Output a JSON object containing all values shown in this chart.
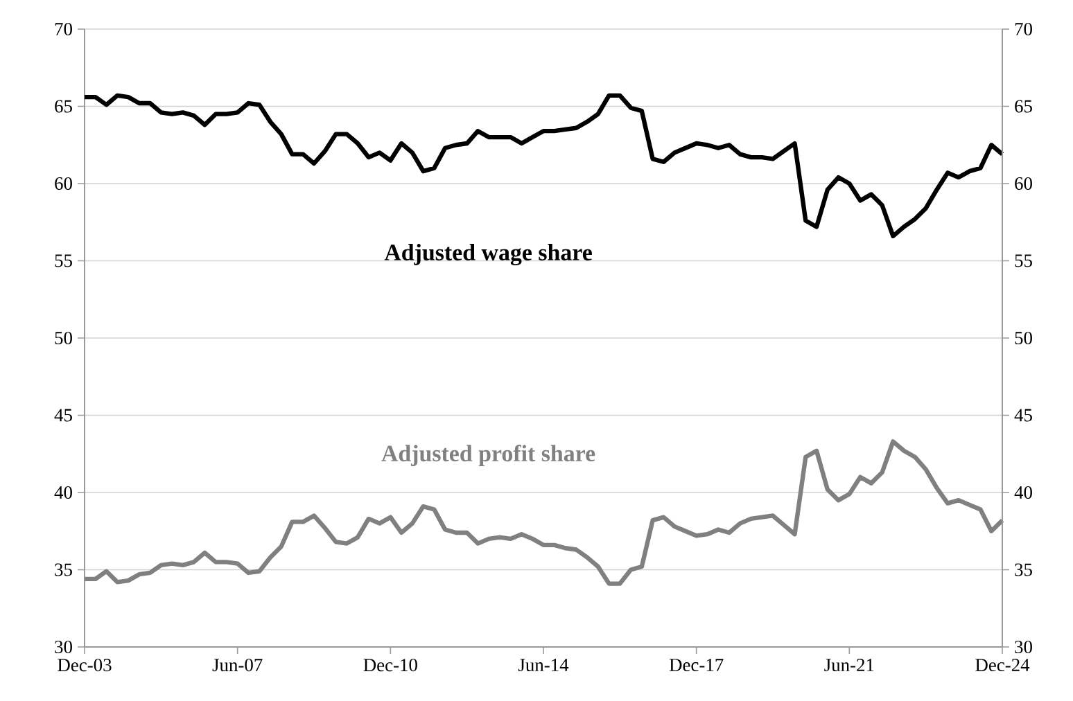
{
  "chart_data": {
    "type": "line",
    "x": [
      "2003-12",
      "2004-03",
      "2004-06",
      "2004-09",
      "2004-12",
      "2005-03",
      "2005-06",
      "2005-09",
      "2005-12",
      "2006-03",
      "2006-06",
      "2006-09",
      "2006-12",
      "2007-03",
      "2007-06",
      "2007-09",
      "2007-12",
      "2008-03",
      "2008-06",
      "2008-09",
      "2008-12",
      "2009-03",
      "2009-06",
      "2009-09",
      "2009-12",
      "2010-03",
      "2010-06",
      "2010-09",
      "2010-12",
      "2011-03",
      "2011-06",
      "2011-09",
      "2011-12",
      "2012-03",
      "2012-06",
      "2012-09",
      "2012-12",
      "2013-03",
      "2013-06",
      "2013-09",
      "2013-12",
      "2014-03",
      "2014-06",
      "2014-09",
      "2014-12",
      "2015-03",
      "2015-06",
      "2015-09",
      "2015-12",
      "2016-03",
      "2016-06",
      "2016-09",
      "2016-12",
      "2017-03",
      "2017-06",
      "2017-09",
      "2017-12",
      "2018-03",
      "2018-06",
      "2018-09",
      "2018-12",
      "2019-03",
      "2019-06",
      "2019-09",
      "2019-12",
      "2020-03",
      "2020-06",
      "2020-09",
      "2020-12",
      "2021-03",
      "2021-06",
      "2021-09",
      "2021-12",
      "2022-03",
      "2022-06",
      "2022-09",
      "2022-12",
      "2023-03",
      "2023-06",
      "2023-09",
      "2023-12",
      "2024-03",
      "2024-06",
      "2024-09",
      "2024-12"
    ],
    "series": [
      {
        "name": "Adjusted wage share",
        "color": "#000000",
        "values": [
          65.6,
          65.6,
          65.1,
          65.7,
          65.6,
          65.2,
          65.2,
          64.6,
          64.5,
          64.6,
          64.4,
          63.8,
          64.5,
          64.5,
          64.6,
          65.2,
          65.1,
          64.0,
          63.2,
          61.9,
          61.9,
          61.3,
          62.1,
          63.2,
          63.2,
          62.6,
          61.7,
          62.0,
          61.5,
          62.6,
          62.0,
          60.8,
          61.0,
          62.3,
          62.5,
          62.6,
          63.4,
          63.0,
          63.0,
          63.0,
          62.6,
          63.0,
          63.4,
          63.4,
          63.5,
          63.6,
          64.0,
          64.5,
          65.7,
          65.7,
          64.9,
          64.7,
          61.6,
          61.4,
          62.0,
          62.3,
          62.6,
          62.5,
          62.3,
          62.5,
          61.9,
          61.7,
          61.7,
          61.6,
          62.1,
          62.6,
          57.6,
          57.2,
          59.6,
          60.4,
          60.0,
          58.9,
          59.3,
          58.6,
          56.6,
          57.2,
          57.7,
          58.4,
          59.6,
          60.7,
          60.4,
          60.8,
          61.0,
          62.5,
          61.9
        ]
      },
      {
        "name": "Adjusted profit share",
        "color": "#808080",
        "values": [
          34.4,
          34.4,
          34.9,
          34.2,
          34.3,
          34.7,
          34.8,
          35.3,
          35.4,
          35.3,
          35.5,
          36.1,
          35.5,
          35.5,
          35.4,
          34.8,
          34.9,
          35.8,
          36.5,
          38.1,
          38.1,
          38.5,
          37.7,
          36.8,
          36.7,
          37.1,
          38.3,
          38.0,
          38.4,
          37.4,
          38.0,
          39.1,
          38.9,
          37.6,
          37.4,
          37.4,
          36.7,
          37.0,
          37.1,
          37.0,
          37.3,
          37.0,
          36.6,
          36.6,
          36.4,
          36.3,
          35.8,
          35.2,
          34.1,
          34.1,
          35.0,
          35.2,
          38.2,
          38.4,
          37.8,
          37.5,
          37.2,
          37.3,
          37.6,
          37.4,
          38.0,
          38.3,
          38.4,
          38.5,
          37.9,
          37.3,
          42.3,
          42.7,
          40.2,
          39.5,
          39.9,
          41.0,
          40.6,
          41.3,
          43.3,
          42.7,
          42.3,
          41.5,
          40.3,
          39.3,
          39.5,
          39.2,
          38.9,
          37.5,
          38.2
        ]
      }
    ],
    "xlim": [
      "2003-12",
      "2024-12"
    ],
    "xticks": [
      {
        "value": "2003-12",
        "label": "Dec-03"
      },
      {
        "value": "2007-06",
        "label": "Jun-07"
      },
      {
        "value": "2010-12",
        "label": "Dec-10"
      },
      {
        "value": "2014-06",
        "label": "Jun-14"
      },
      {
        "value": "2017-12",
        "label": "Dec-17"
      },
      {
        "value": "2021-06",
        "label": "Jun-21"
      },
      {
        "value": "2024-12",
        "label": "Dec-24"
      }
    ],
    "ylim": [
      30,
      70
    ],
    "yticks": [
      30,
      35,
      40,
      45,
      50,
      55,
      60,
      65,
      70
    ],
    "y2lim": [
      30,
      70
    ],
    "y2ticks": [
      30,
      35,
      40,
      45,
      50,
      55,
      60,
      65,
      70
    ],
    "grid": "y",
    "legend": false,
    "marker": "none",
    "line_style": "solid"
  }
}
